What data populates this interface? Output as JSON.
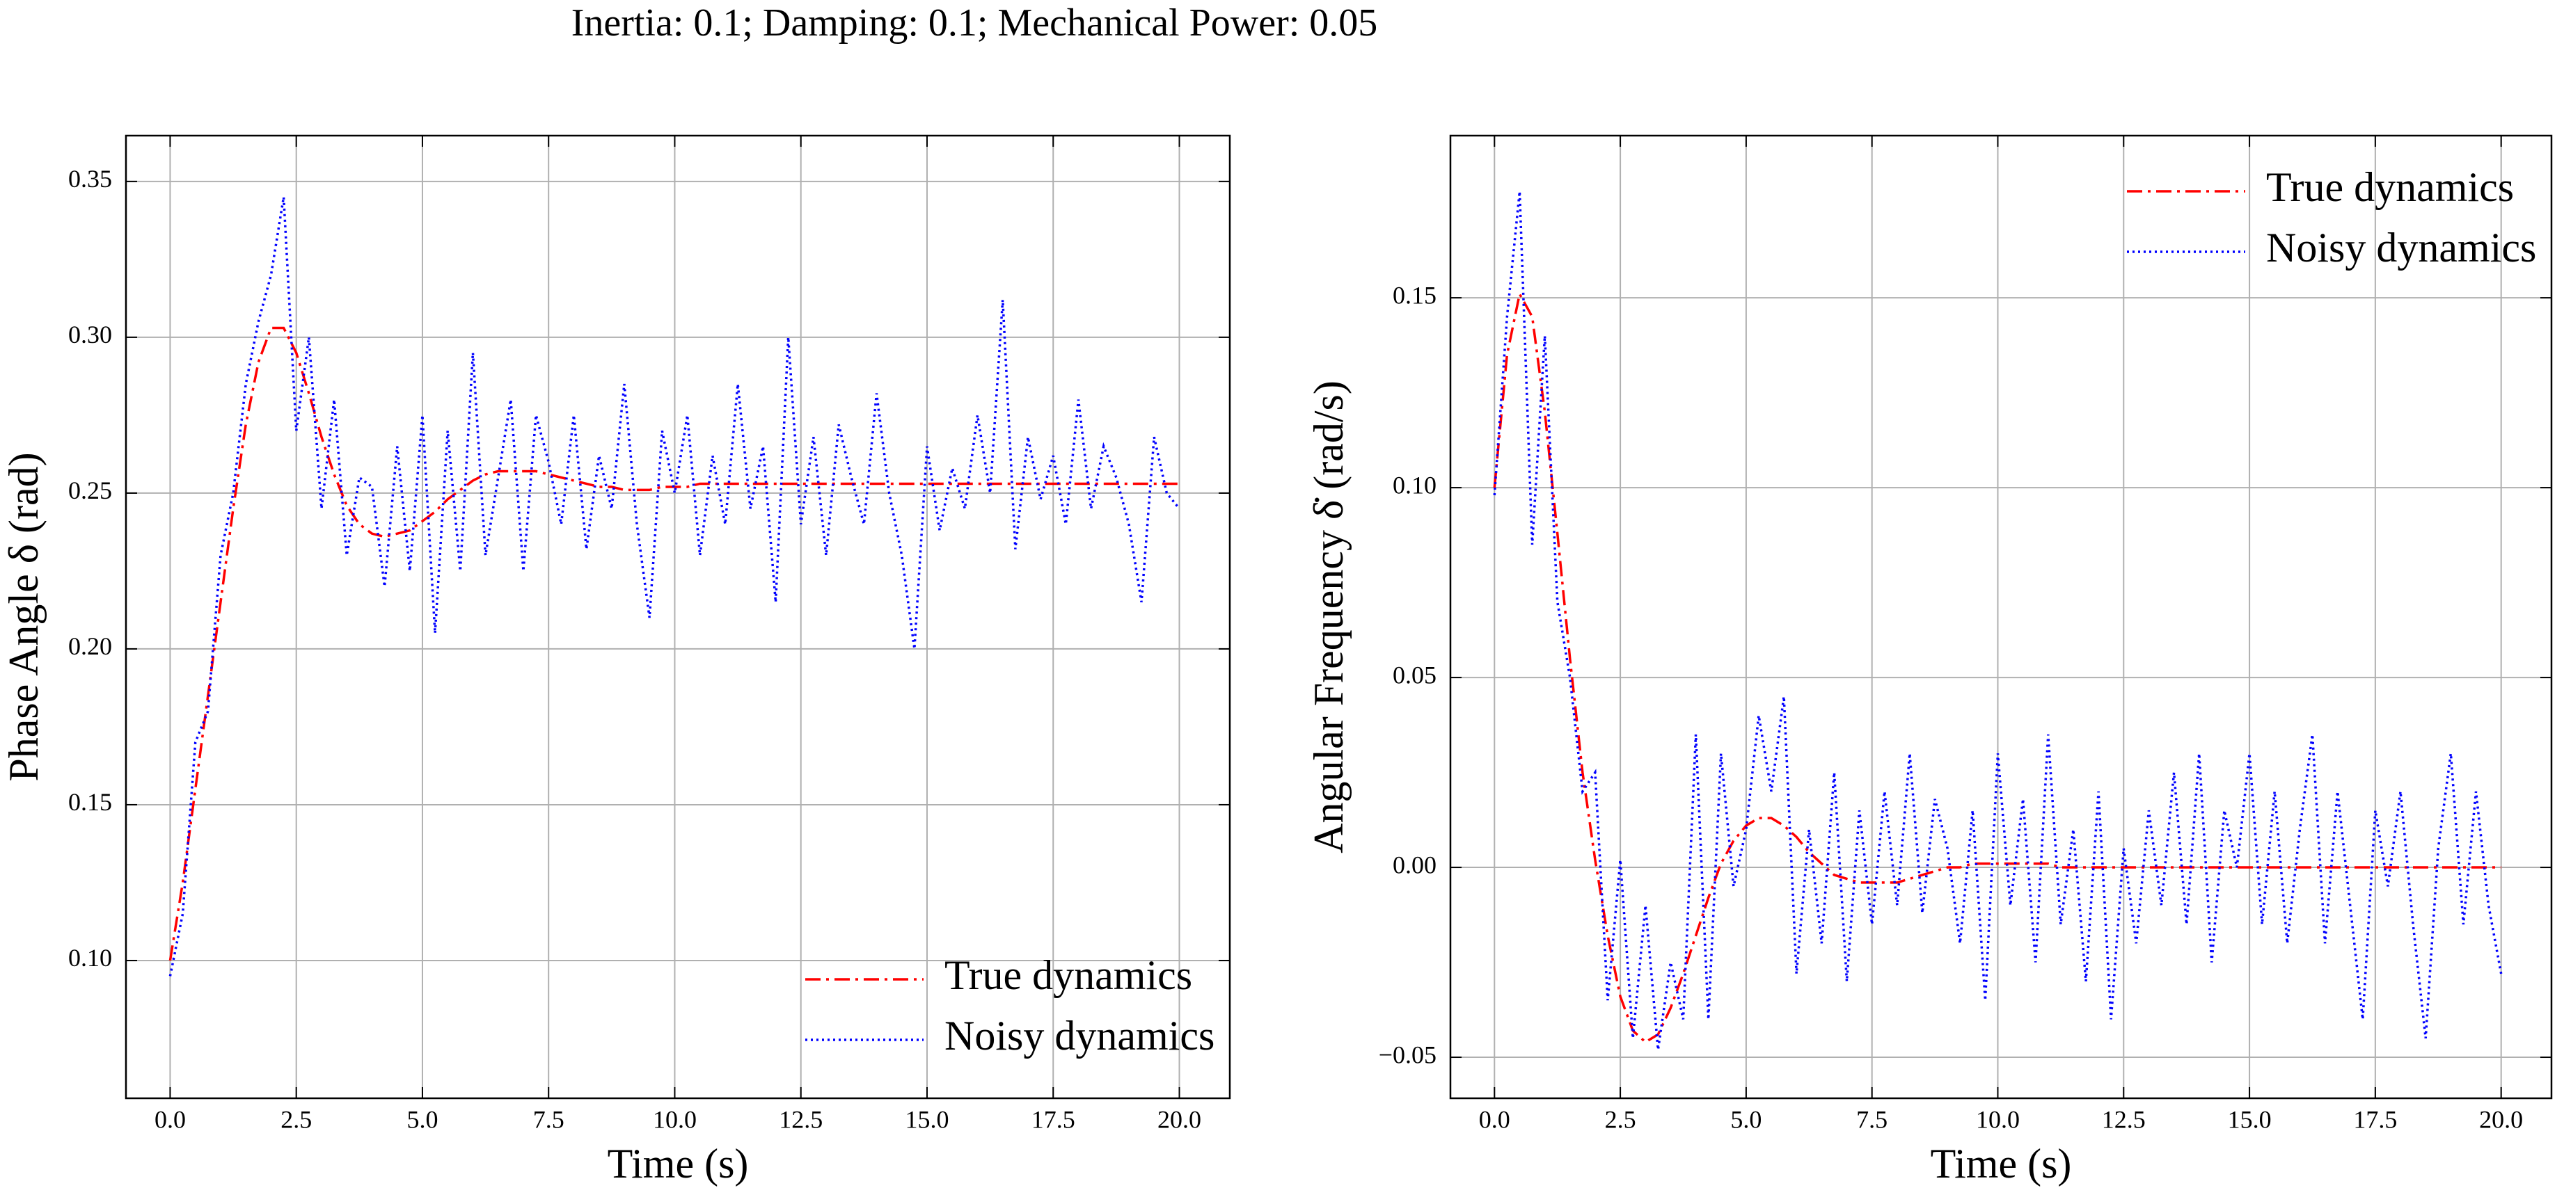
{
  "title": "Inertia: 0.1; Damping: 0.1; Mechanical Power: 0.05",
  "chart_data": [
    {
      "type": "line",
      "xlabel": "Time (s)",
      "ylabel": "Phase Angle δ (rad)",
      "xlim": [
        -0.875,
        21.0
      ],
      "ylim": [
        0.0558,
        0.3647
      ],
      "grid": true,
      "legend": "lower right",
      "xticks": [
        {
          "value": 0,
          "label": "0.0"
        },
        {
          "value": 2.5,
          "label": "2.5"
        },
        {
          "value": 5,
          "label": "5.0"
        },
        {
          "value": 7.5,
          "label": "7.5"
        },
        {
          "value": 10,
          "label": "10.0"
        },
        {
          "value": 12.5,
          "label": "12.5"
        },
        {
          "value": 15,
          "label": "15.0"
        },
        {
          "value": 17.5,
          "label": "17.5"
        },
        {
          "value": 20,
          "label": "20.0"
        }
      ],
      "yticks": [
        {
          "value": 0.1,
          "label": "0.10"
        },
        {
          "value": 0.15,
          "label": "0.15"
        },
        {
          "value": 0.2,
          "label": "0.20"
        },
        {
          "value": 0.25,
          "label": "0.25"
        },
        {
          "value": 0.3,
          "label": "0.30"
        },
        {
          "value": 0.35,
          "label": "0.35"
        }
      ],
      "x": [
        0,
        0.25,
        0.5,
        0.75,
        1,
        1.25,
        1.5,
        1.75,
        2,
        2.25,
        2.5,
        2.75,
        3,
        3.25,
        3.5,
        3.75,
        4,
        4.25,
        4.5,
        4.75,
        5,
        5.25,
        5.5,
        5.75,
        6,
        6.25,
        6.5,
        6.75,
        7,
        7.25,
        7.5,
        7.75,
        8,
        8.25,
        8.5,
        8.75,
        9,
        9.25,
        9.5,
        9.75,
        10,
        10.25,
        10.5,
        10.75,
        11,
        11.25,
        11.5,
        11.75,
        12,
        12.25,
        12.5,
        12.75,
        13,
        13.25,
        13.5,
        13.75,
        14,
        14.25,
        14.5,
        14.75,
        15,
        15.25,
        15.5,
        15.75,
        16,
        16.25,
        16.5,
        16.75,
        17,
        17.25,
        17.5,
        17.75,
        18,
        18.25,
        18.5,
        18.75,
        19,
        19.25,
        19.5,
        19.75,
        20
      ],
      "series": [
        {
          "name": "True dynamics",
          "color": "#ff0000",
          "linestyle": "dashdot",
          "values": [
            0.1,
            0.125,
            0.155,
            0.185,
            0.215,
            0.245,
            0.272,
            0.292,
            0.303,
            0.303,
            0.295,
            0.282,
            0.268,
            0.256,
            0.246,
            0.24,
            0.237,
            0.236,
            0.237,
            0.238,
            0.241,
            0.244,
            0.248,
            0.251,
            0.254,
            0.256,
            0.257,
            0.257,
            0.257,
            0.257,
            0.256,
            0.255,
            0.254,
            0.253,
            0.252,
            0.252,
            0.251,
            0.251,
            0.251,
            0.252,
            0.252,
            0.252,
            0.253,
            0.253,
            0.253,
            0.253,
            0.253,
            0.253,
            0.253,
            0.253,
            0.253,
            0.253,
            0.253,
            0.253,
            0.253,
            0.253,
            0.253,
            0.253,
            0.253,
            0.253,
            0.253,
            0.253,
            0.253,
            0.253,
            0.253,
            0.253,
            0.253,
            0.253,
            0.253,
            0.253,
            0.253,
            0.253,
            0.253,
            0.253,
            0.253,
            0.253,
            0.253,
            0.253,
            0.253,
            0.253,
            0.253
          ]
        },
        {
          "name": "Noisy dynamics",
          "color": "#0000ff",
          "linestyle": "dotted",
          "values": [
            0.095,
            0.115,
            0.17,
            0.18,
            0.23,
            0.25,
            0.285,
            0.305,
            0.32,
            0.345,
            0.27,
            0.3,
            0.245,
            0.28,
            0.23,
            0.255,
            0.252,
            0.22,
            0.265,
            0.225,
            0.275,
            0.205,
            0.27,
            0.225,
            0.295,
            0.23,
            0.255,
            0.28,
            0.225,
            0.275,
            0.26,
            0.24,
            0.275,
            0.232,
            0.262,
            0.245,
            0.285,
            0.24,
            0.21,
            0.27,
            0.25,
            0.275,
            0.23,
            0.262,
            0.24,
            0.285,
            0.245,
            0.265,
            0.215,
            0.3,
            0.24,
            0.268,
            0.23,
            0.272,
            0.255,
            0.24,
            0.282,
            0.25,
            0.23,
            0.2,
            0.265,
            0.238,
            0.258,
            0.245,
            0.275,
            0.25,
            0.312,
            0.232,
            0.268,
            0.248,
            0.262,
            0.24,
            0.28,
            0.245,
            0.265,
            0.255,
            0.24,
            0.215,
            0.268,
            0.25,
            0.245
          ]
        }
      ]
    },
    {
      "type": "line",
      "xlabel": "Time (s)",
      "ylabel": "Angular Frequency δ̇ (rad/s)",
      "xlim": [
        -0.875,
        21.0
      ],
      "ylim": [
        -0.0608,
        0.1927
      ],
      "grid": true,
      "legend": "upper right",
      "xticks": [
        {
          "value": 0,
          "label": "0.0"
        },
        {
          "value": 2.5,
          "label": "2.5"
        },
        {
          "value": 5,
          "label": "5.0"
        },
        {
          "value": 7.5,
          "label": "7.5"
        },
        {
          "value": 10,
          "label": "10.0"
        },
        {
          "value": 12.5,
          "label": "12.5"
        },
        {
          "value": 15,
          "label": "15.0"
        },
        {
          "value": 17.5,
          "label": "17.5"
        },
        {
          "value": 20,
          "label": "20.0"
        }
      ],
      "yticks": [
        {
          "value": -0.05,
          "label": "−0.05"
        },
        {
          "value": 0,
          "label": "0.00"
        },
        {
          "value": 0.05,
          "label": "0.05"
        },
        {
          "value": 0.1,
          "label": "0.10"
        },
        {
          "value": 0.15,
          "label": "0.15"
        }
      ],
      "x": [
        0,
        0.25,
        0.5,
        0.75,
        1,
        1.25,
        1.5,
        1.75,
        2,
        2.25,
        2.5,
        2.75,
        3,
        3.25,
        3.5,
        3.75,
        4,
        4.25,
        4.5,
        4.75,
        5,
        5.25,
        5.5,
        5.75,
        6,
        6.25,
        6.5,
        6.75,
        7,
        7.25,
        7.5,
        7.75,
        8,
        8.25,
        8.5,
        8.75,
        9,
        9.25,
        9.5,
        9.75,
        10,
        10.25,
        10.5,
        10.75,
        11,
        11.25,
        11.5,
        11.75,
        12,
        12.25,
        12.5,
        12.75,
        13,
        13.25,
        13.5,
        13.75,
        14,
        14.25,
        14.5,
        14.75,
        15,
        15.25,
        15.5,
        15.75,
        16,
        16.25,
        16.5,
        16.75,
        17,
        17.25,
        17.5,
        17.75,
        18,
        18.25,
        18.5,
        18.75,
        19,
        19.25,
        19.5,
        19.75,
        20
      ],
      "series": [
        {
          "name": "True dynamics",
          "color": "#ff0000",
          "linestyle": "dashdot",
          "values": [
            0.1,
            0.135,
            0.151,
            0.145,
            0.12,
            0.088,
            0.055,
            0.025,
            0.002,
            -0.018,
            -0.034,
            -0.043,
            -0.046,
            -0.044,
            -0.037,
            -0.028,
            -0.018,
            -0.008,
            0.001,
            0.007,
            0.011,
            0.013,
            0.013,
            0.011,
            0.008,
            0.004,
            0.001,
            -0.002,
            -0.003,
            -0.004,
            -0.004,
            -0.004,
            -0.004,
            -0.003,
            -0.002,
            -0.001,
            0,
            0,
            0.001,
            0.001,
            0.001,
            0.001,
            0.001,
            0.001,
            0.001,
            0,
            0,
            0,
            0,
            0,
            0,
            0,
            0,
            0,
            0,
            0,
            0,
            0,
            0,
            0,
            0,
            0,
            0,
            0,
            0,
            0,
            0,
            0,
            0,
            0,
            0,
            0,
            0,
            0,
            0,
            0,
            0,
            0,
            0,
            0,
            0
          ]
        },
        {
          "name": "Noisy dynamics",
          "color": "#0000ff",
          "linestyle": "dotted",
          "values": [
            0.098,
            0.145,
            0.178,
            0.085,
            0.14,
            0.07,
            0.05,
            0.02,
            0.025,
            -0.035,
            0.002,
            -0.045,
            -0.01,
            -0.048,
            -0.025,
            -0.04,
            0.035,
            -0.04,
            0.03,
            -0.005,
            0.01,
            0.04,
            0.02,
            0.045,
            -0.028,
            0.01,
            -0.02,
            0.025,
            -0.03,
            0.015,
            -0.015,
            0.02,
            -0.01,
            0.03,
            -0.012,
            0.018,
            0.005,
            -0.02,
            0.015,
            -0.035,
            0.03,
            -0.01,
            0.018,
            -0.025,
            0.035,
            -0.015,
            0.01,
            -0.03,
            0.02,
            -0.04,
            0.005,
            -0.02,
            0.015,
            -0.01,
            0.025,
            -0.015,
            0.03,
            -0.025,
            0.015,
            0,
            0.03,
            -0.015,
            0.02,
            -0.02,
            0.01,
            0.035,
            -0.02,
            0.02,
            -0.01,
            -0.04,
            0.015,
            -0.005,
            0.02,
            -0.015,
            -0.045,
            0.005,
            0.03,
            -0.015,
            0.02,
            -0.01,
            -0.028
          ]
        }
      ]
    }
  ]
}
